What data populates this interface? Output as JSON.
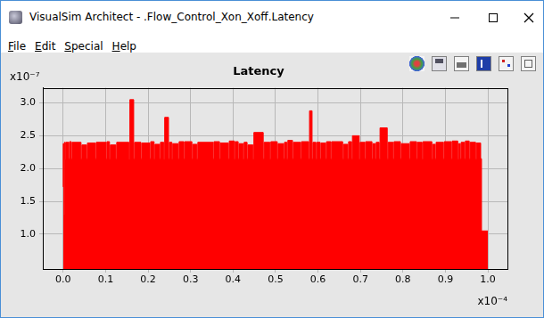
{
  "window": {
    "title": "VisualSim Architect - .Flow_Control_Xon_Xoff.Latency",
    "menu": [
      "File",
      "Edit",
      "Special",
      "Help"
    ]
  },
  "chart_data": {
    "type": "area",
    "title": "Latency",
    "xlabel": "x10⁻⁴",
    "ylabel": "x10⁻⁷",
    "x": [
      0,
      1.5e-07,
      3e-07,
      4.5e-07,
      6e-07,
      1.3e-06,
      1.5e-06,
      1.9e-06,
      2.1e-06,
      4.2e-06,
      4.4e-06,
      5.5e-06,
      5.7e-06,
      7.6e-06,
      7.8e-06,
      1.01e-05,
      1.03e-05,
      1.09e-05,
      1.11e-05,
      1.24e-05,
      1.26e-05,
      1.55e-05,
      1.57e-05,
      1.66e-05,
      1.68e-05,
      1.83e-05,
      1.85e-05,
      2.04e-05,
      2.06e-05,
      2.14e-05,
      2.16e-05,
      2.27e-05,
      2.29e-05,
      2.37e-05,
      2.39e-05,
      2.48e-05,
      2.5e-05,
      2.56e-05,
      2.58e-05,
      2.71e-05,
      2.73e-05,
      2.84e-05,
      2.86e-05,
      3.03e-05,
      3.05e-05,
      3.15e-05,
      3.17e-05,
      3.53e-05,
      3.55e-05,
      3.68e-05,
      3.7e-05,
      3.89e-05,
      3.91e-05,
      4.03e-05,
      4.05e-05,
      4.12e-05,
      4.14e-05,
      4.24e-05,
      4.26e-05,
      4.33e-05,
      4.35e-05,
      4.47e-05,
      4.49e-05,
      4.71e-05,
      4.73e-05,
      4.87e-05,
      4.89e-05,
      5.04e-05,
      5.06e-05,
      5.19e-05,
      5.21e-05,
      5.27e-05,
      5.29e-05,
      5.4e-05,
      5.42e-05,
      5.59e-05,
      5.61e-05,
      5.78e-05,
      5.8e-05,
      5.86e-05,
      5.88e-05,
      5.95e-05,
      5.97e-05,
      6.05e-05,
      6.07e-05,
      6.18e-05,
      6.2e-05,
      6.3e-05,
      6.32e-05,
      6.58e-05,
      6.6e-05,
      6.7e-05,
      6.72e-05,
      6.79e-05,
      6.81e-05,
      6.97e-05,
      6.99e-05,
      7.1e-05,
      7.12e-05,
      7.27e-05,
      7.29e-05,
      7.35e-05,
      7.37e-05,
      7.44e-05,
      7.46e-05,
      7.63e-05,
      7.65e-05,
      7.77e-05,
      7.79e-05,
      7.94e-05,
      7.96e-05,
      8.15e-05,
      8.17e-05,
      8.32e-05,
      8.34e-05,
      8.45e-05,
      8.47e-05,
      8.68e-05,
      8.7e-05,
      8.76e-05,
      8.78e-05,
      8.95e-05,
      8.97e-05,
      9.14e-05,
      9.16e-05,
      9.29e-05,
      9.31e-05,
      9.35e-05,
      9.37e-05,
      9.45e-05,
      9.47e-05,
      9.56e-05,
      9.58e-05,
      9.71e-05,
      9.73e-05,
      9.83e-05,
      9.85e-05,
      0.0001
    ],
    "values": [
      1.72e-07,
      2.38e-07,
      1.3e-07,
      2.4e-07,
      2.15e-07,
      2.4e-07,
      2.15e-07,
      2.41e-07,
      2.15e-07,
      2.4e-07,
      2.15e-07,
      2.36e-07,
      2.15e-07,
      2.39e-07,
      2.15e-07,
      2.4e-07,
      2.15e-07,
      2.41e-07,
      2.15e-07,
      2.36e-07,
      2.15e-07,
      2.4e-07,
      2.15e-07,
      3.05e-07,
      2.15e-07,
      2.4e-07,
      2.15e-07,
      2.39e-07,
      2.15e-07,
      2.41e-07,
      2.15e-07,
      2.37e-07,
      2.15e-07,
      2.4e-07,
      2.15e-07,
      2.78e-07,
      2.15e-07,
      2.4e-07,
      2.15e-07,
      2.38e-07,
      2.15e-07,
      2.41e-07,
      2.15e-07,
      2.41e-07,
      2.15e-07,
      2.37e-07,
      2.15e-07,
      2.4e-07,
      2.15e-07,
      2.41e-07,
      2.15e-07,
      2.39e-07,
      2.15e-07,
      2.42e-07,
      2.15e-07,
      2.41e-07,
      2.15e-07,
      2.38e-07,
      2.15e-07,
      2.4e-07,
      2.15e-07,
      2.36e-07,
      2.15e-07,
      2.55e-07,
      2.15e-07,
      2.4e-07,
      2.15e-07,
      2.41e-07,
      2.15e-07,
      2.38e-07,
      2.15e-07,
      2.4e-07,
      2.15e-07,
      2.43e-07,
      2.15e-07,
      2.4e-07,
      2.15e-07,
      2.41e-07,
      2.15e-07,
      2.88e-07,
      2.15e-07,
      2.4e-07,
      2.15e-07,
      2.4e-07,
      2.15e-07,
      2.39e-07,
      2.15e-07,
      2.41e-07,
      2.15e-07,
      2.41e-07,
      2.15e-07,
      2.37e-07,
      2.15e-07,
      2.41e-07,
      2.15e-07,
      2.5e-07,
      2.15e-07,
      2.4e-07,
      2.15e-07,
      2.41e-07,
      2.15e-07,
      2.38e-07,
      2.15e-07,
      2.4e-07,
      2.15e-07,
      2.62e-07,
      2.15e-07,
      2.4e-07,
      2.15e-07,
      2.41e-07,
      2.15e-07,
      2.38e-07,
      2.15e-07,
      2.41e-07,
      2.15e-07,
      2.4e-07,
      2.15e-07,
      2.41e-07,
      2.15e-07,
      2.37e-07,
      2.15e-07,
      2.4e-07,
      2.15e-07,
      2.41e-07,
      2.15e-07,
      2.42e-07,
      2.15e-07,
      2.38e-07,
      2.15e-07,
      2.4e-07,
      2.15e-07,
      2.42e-07,
      2.15e-07,
      2.4e-07,
      2.15e-07,
      2.39e-07,
      2.15e-07,
      1.05e-07
    ],
    "color": "#ff0000",
    "line_style": "steps",
    "xlim": [
      -4.8e-06,
      0.0001046
    ],
    "xticks": [
      {
        "value": 0,
        "label": "0.0"
      },
      {
        "value": 1e-05,
        "label": "0.1"
      },
      {
        "value": 2e-05,
        "label": "0.2"
      },
      {
        "value": 3e-05,
        "label": "0.3"
      },
      {
        "value": 4e-05,
        "label": "0.4"
      },
      {
        "value": 5e-05,
        "label": "0.5"
      },
      {
        "value": 6e-05,
        "label": "0.6"
      },
      {
        "value": 7e-05,
        "label": "0.7"
      },
      {
        "value": 8e-05,
        "label": "0.8"
      },
      {
        "value": 9e-05,
        "label": "0.9"
      },
      {
        "value": 0.0001,
        "label": "1.0"
      }
    ],
    "ylim": [
      4.7e-08,
      3.23e-07
    ],
    "yticks": [
      {
        "value": 1e-07,
        "label": "1.0"
      },
      {
        "value": 1.5e-07,
        "label": "1.5"
      },
      {
        "value": 2e-07,
        "label": "2.0"
      },
      {
        "value": 2.5e-07,
        "label": "2.5"
      },
      {
        "value": 3e-07,
        "label": "3.0"
      }
    ],
    "grid": true
  }
}
